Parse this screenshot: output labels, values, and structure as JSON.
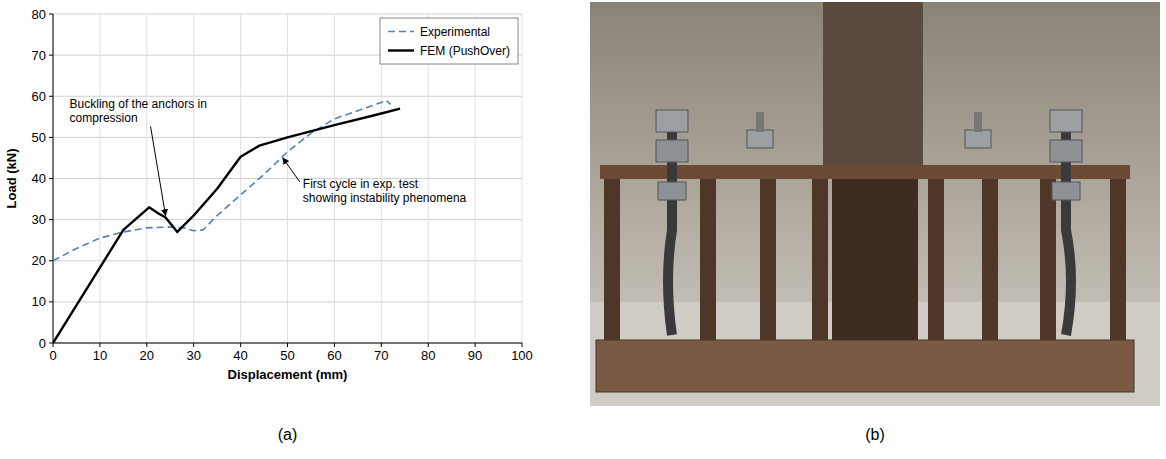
{
  "chart_data": {
    "type": "line",
    "xlabel": "Displacement (mm)",
    "ylabel": "Load (kN)",
    "xlim": [
      0,
      100
    ],
    "ylim": [
      0,
      80
    ],
    "xticks": [
      0,
      10,
      20,
      30,
      40,
      50,
      60,
      70,
      80,
      90,
      100
    ],
    "yticks": [
      0,
      10,
      20,
      30,
      40,
      50,
      60,
      70,
      80
    ],
    "grid": true,
    "legend": "upper right",
    "series": [
      {
        "name": "Experimental",
        "color": "#4f81bd",
        "line_style": "dashed",
        "x": [
          0,
          5,
          10,
          15,
          20,
          25,
          28,
          30,
          32,
          35,
          40,
          45,
          50,
          55,
          60,
          65,
          70,
          71,
          72
        ],
        "values": [
          20,
          23,
          25.5,
          27,
          28,
          28.2,
          28,
          27.3,
          27.5,
          31,
          36,
          41,
          46.5,
          51,
          54.5,
          56.5,
          58.5,
          59,
          58
        ]
      },
      {
        "name": "FEM (PushOver)",
        "color": "#000000",
        "line_style": "solid",
        "x": [
          0,
          15,
          20.5,
          22.5,
          24,
          26.5,
          30,
          35,
          40,
          44,
          50,
          60,
          70,
          74
        ],
        "values": [
          0,
          27.5,
          33,
          31.5,
          30.5,
          27,
          31,
          37.5,
          45.3,
          48,
          50,
          53,
          55.8,
          57
        ]
      }
    ],
    "annotations": [
      {
        "text": [
          "Buckling of the anchors in",
          "compression"
        ],
        "x": 24,
        "y": 31
      },
      {
        "text": [
          "First cycle in exp. test",
          "showing instability phenomena"
        ],
        "x": 49,
        "y": 45
      }
    ],
    "panel_label": "(a)"
  },
  "photo": {
    "panel_label": "(b)"
  }
}
